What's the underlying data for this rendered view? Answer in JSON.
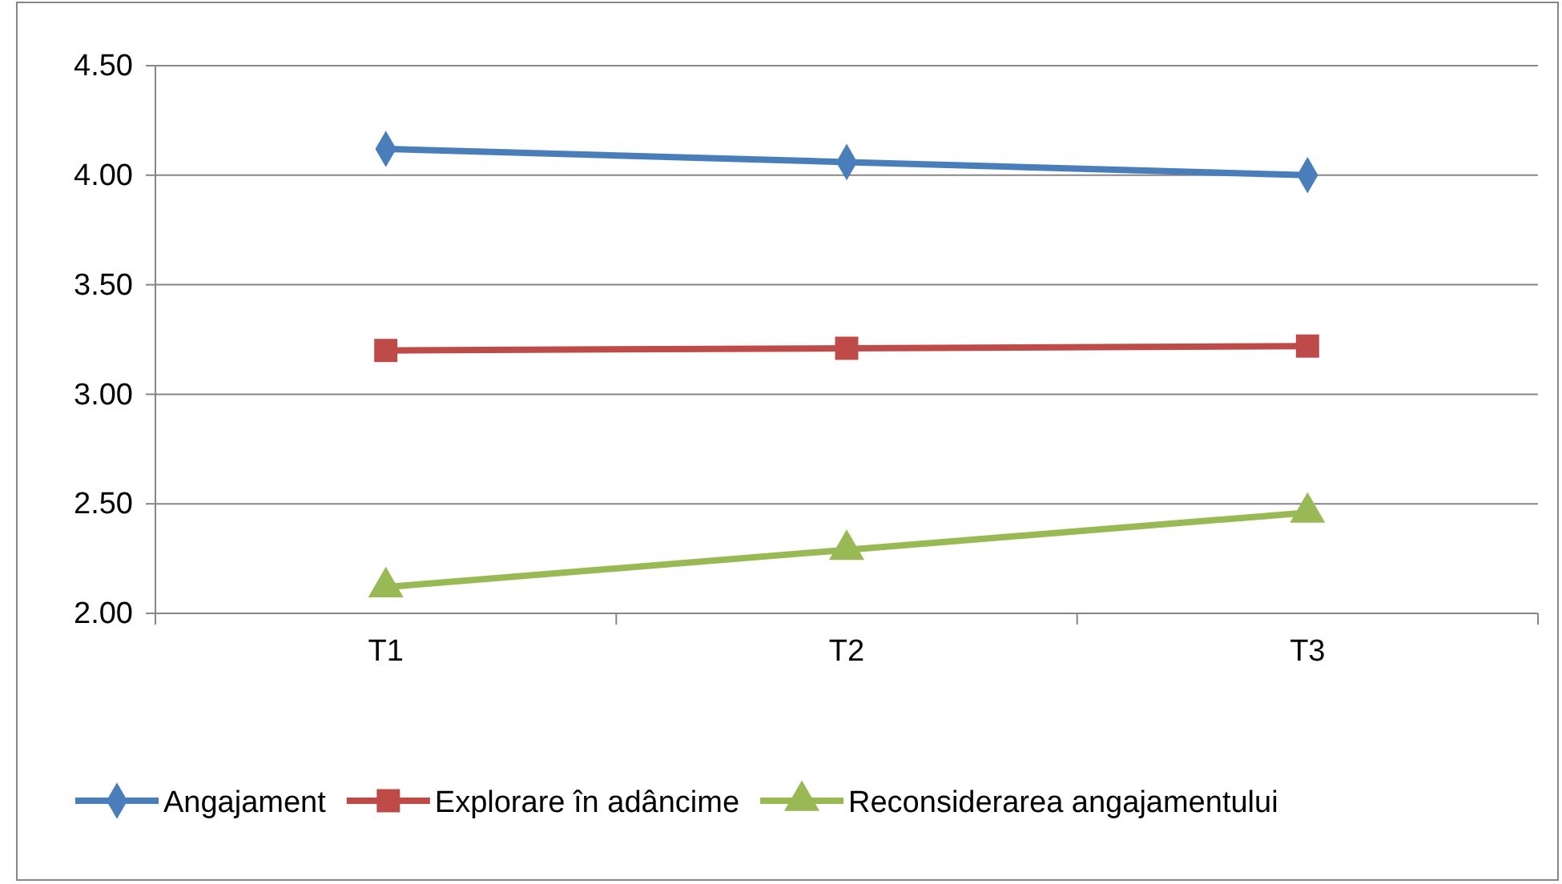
{
  "chart_data": {
    "type": "line",
    "categories": [
      "T1",
      "T2",
      "T3"
    ],
    "series": [
      {
        "name": "Angajament",
        "color": "#4a7ebb",
        "marker": "diamond",
        "values": [
          4.12,
          4.06,
          4.0
        ]
      },
      {
        "name": "Explorare în adâncime",
        "color": "#be4b48",
        "marker": "square",
        "values": [
          3.2,
          3.21,
          3.22
        ]
      },
      {
        "name": "Reconsiderarea angajamentului",
        "color": "#98b954",
        "marker": "triangle",
        "values": [
          2.12,
          2.29,
          2.46
        ]
      }
    ],
    "ylim": [
      2.0,
      4.5
    ],
    "yticks": [
      {
        "value": 2.0,
        "label": "2.00"
      },
      {
        "value": 2.5,
        "label": "2.50"
      },
      {
        "value": 3.0,
        "label": "3.00"
      },
      {
        "value": 3.5,
        "label": "3.50"
      },
      {
        "value": 4.0,
        "label": "4.00"
      },
      {
        "value": 4.5,
        "label": "4.50"
      }
    ],
    "grid": "y",
    "legend": "bottom",
    "line_style": "solid"
  }
}
